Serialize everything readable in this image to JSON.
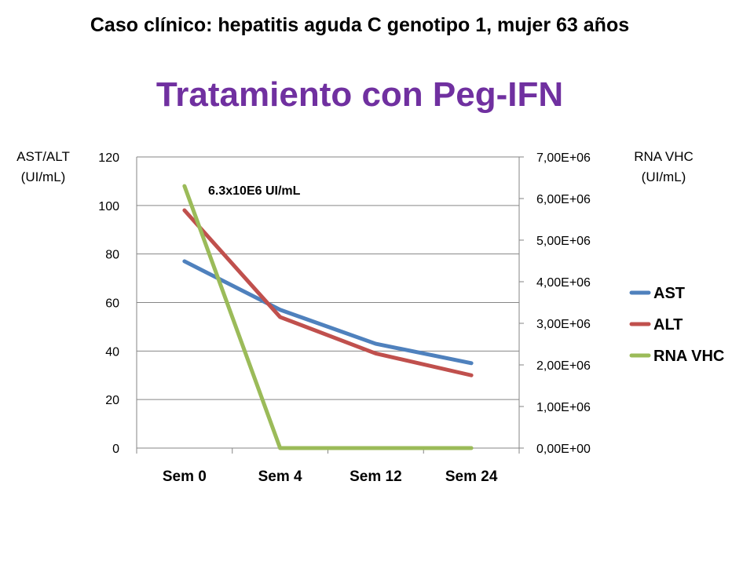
{
  "header": "Caso clínico: hepatitis aguda C genotipo 1, mujer 63 años",
  "title": "Tratamiento con Peg-IFN",
  "left_axis_title": [
    "AST/ALT",
    "(UI/mL)"
  ],
  "right_axis_title": [
    "RNA VHC",
    "(UI/mL)"
  ],
  "colors": {
    "title": "#7030A0",
    "AST": "#4F81BD",
    "ALT": "#C0504D",
    "RNA VHC": "#9BBB59",
    "grid": "#868686"
  },
  "chart_data": {
    "type": "line",
    "categories": [
      "Sem 0",
      "Sem 4",
      "Sem 12",
      "Sem 24"
    ],
    "series": [
      {
        "name": "AST",
        "axis": "left",
        "values": [
          77,
          57,
          43,
          35
        ]
      },
      {
        "name": "ALT",
        "axis": "left",
        "values": [
          98,
          54,
          39,
          30
        ]
      },
      {
        "name": "RNA VHC",
        "axis": "right",
        "values": [
          6300000,
          0,
          0,
          0
        ]
      }
    ],
    "y_left": {
      "range": [
        0,
        120
      ],
      "ticks": [
        "0",
        "20",
        "40",
        "60",
        "80",
        "100",
        "120"
      ]
    },
    "y_right": {
      "range": [
        0,
        7000000
      ],
      "ticks": [
        "0,00E+00",
        "1,00E+06",
        "2,00E+06",
        "3,00E+06",
        "4,00E+06",
        "5,00E+06",
        "6,00E+06",
        "7,00E+06"
      ]
    },
    "annotation": {
      "text": "6.3x10E6 UI/mL",
      "series": "RNA VHC",
      "point": 0
    },
    "grid": true,
    "legend": "right"
  }
}
